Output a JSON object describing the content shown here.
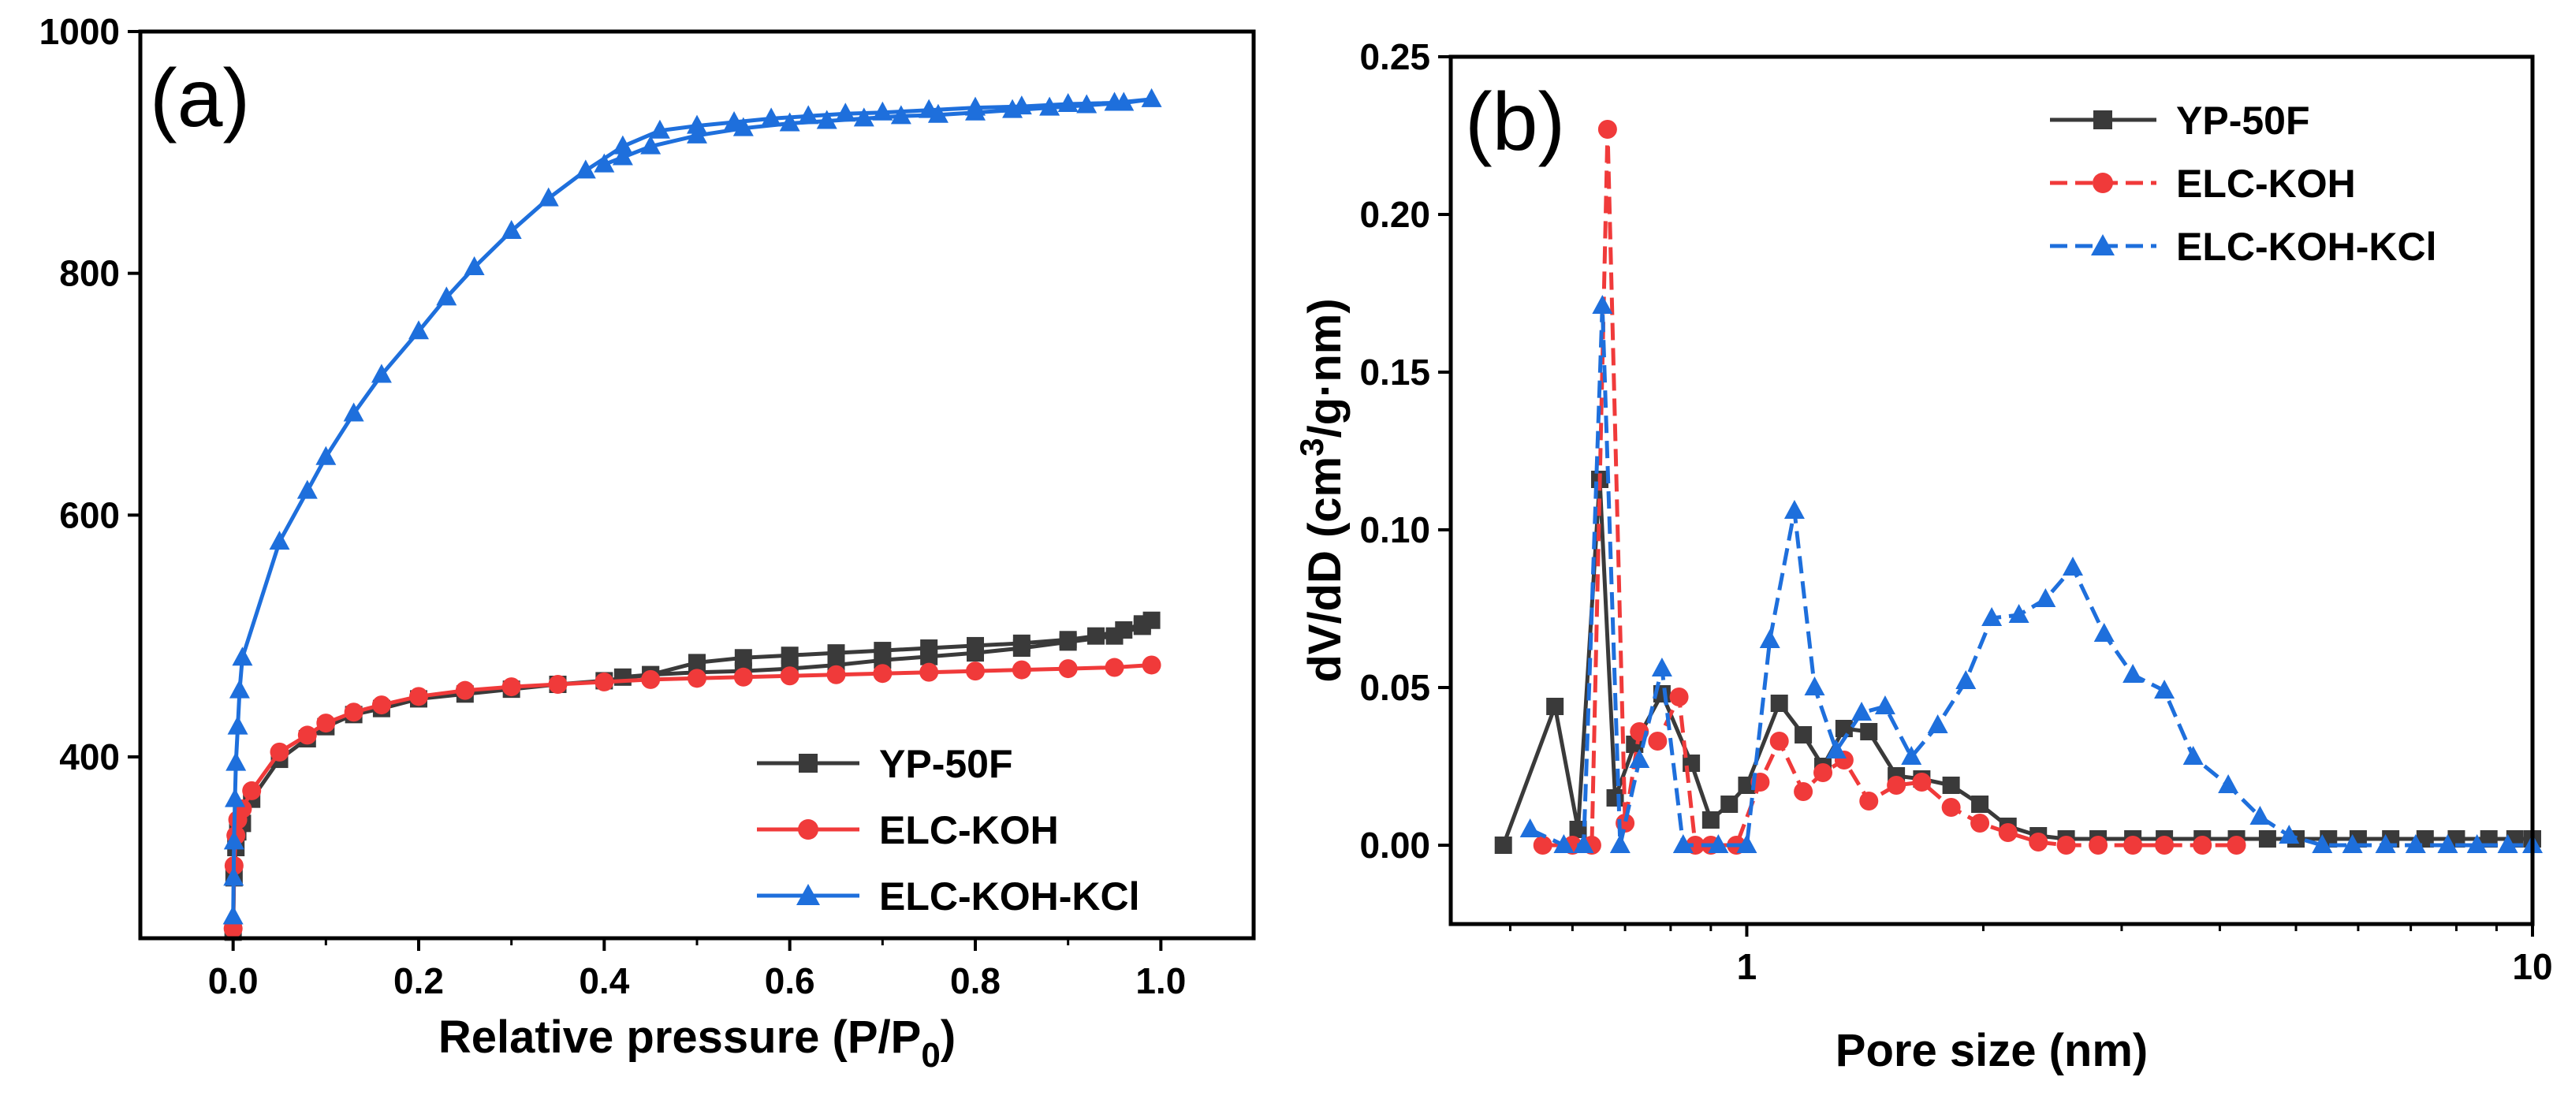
{
  "chart_data": [
    {
      "type": "line",
      "panel_label": "(a)",
      "title": "",
      "xlabel": "Relative pressure (P/P",
      "xlabel_sub": "0",
      "xlabel_close": ")",
      "ylabel": "",
      "xlim": [
        -0.1,
        1.1
      ],
      "ylim": [
        250,
        1000
      ],
      "xticks": [
        0.0,
        0.2,
        0.4,
        0.6,
        0.8,
        1.0
      ],
      "xtick_labels": [
        "0.0",
        "0.2",
        "0.4",
        "0.6",
        "0.8",
        "1.0"
      ],
      "yticks": [
        400,
        600,
        800,
        1000
      ],
      "ytick_labels": [
        "400",
        "600",
        "800",
        "1000"
      ],
      "legend_position": "bottom-right",
      "series": [
        {
          "name": "YP-50F",
          "color": "#3a3a3a",
          "marker": "square",
          "x": [
            0.0,
            0.001,
            0.003,
            0.005,
            0.01,
            0.02,
            0.05,
            0.08,
            0.1,
            0.13,
            0.16,
            0.2,
            0.25,
            0.3,
            0.35,
            0.4,
            0.45,
            0.5,
            0.55,
            0.6,
            0.65,
            0.7,
            0.75,
            0.8,
            0.85,
            0.9,
            0.93,
            0.96,
            0.98,
            0.99,
            0.98,
            0.95,
            0.9,
            0.85,
            0.8,
            0.75,
            0.7,
            0.65,
            0.6,
            0.55,
            0.5,
            0.45,
            0.42
          ],
          "y": [
            255,
            300,
            325,
            338,
            345,
            365,
            398,
            415,
            425,
            435,
            440,
            448,
            452,
            456,
            460,
            463,
            468,
            478,
            482,
            484,
            486,
            488,
            490,
            492,
            494,
            497,
            500,
            505,
            510,
            513,
            508,
            500,
            495,
            490,
            486,
            483,
            480,
            476,
            473,
            471,
            470,
            468,
            466
          ]
        },
        {
          "name": "ELC-KOH",
          "color": "#f03a3a",
          "marker": "circle",
          "x": [
            0.0,
            0.001,
            0.003,
            0.005,
            0.01,
            0.02,
            0.05,
            0.08,
            0.1,
            0.13,
            0.16,
            0.2,
            0.25,
            0.3,
            0.35,
            0.4,
            0.45,
            0.5,
            0.55,
            0.6,
            0.65,
            0.7,
            0.75,
            0.8,
            0.85,
            0.9,
            0.95,
            0.99
          ],
          "y": [
            258,
            310,
            335,
            348,
            357,
            372,
            404,
            418,
            428,
            437,
            443,
            450,
            455,
            458,
            460,
            462,
            464,
            465,
            466,
            467,
            468,
            469,
            470,
            471,
            472,
            473,
            474,
            476
          ]
        },
        {
          "name": "ELC-KOH-KCl",
          "color": "#1e6fdc",
          "marker": "triangle",
          "x": [
            0.0,
            0.0005,
            0.001,
            0.002,
            0.003,
            0.005,
            0.007,
            0.01,
            0.05,
            0.08,
            0.1,
            0.13,
            0.16,
            0.2,
            0.23,
            0.26,
            0.3,
            0.34,
            0.38,
            0.42,
            0.46,
            0.5,
            0.54,
            0.58,
            0.62,
            0.66,
            0.7,
            0.75,
            0.8,
            0.85,
            0.9,
            0.95,
            0.99,
            0.96,
            0.92,
            0.88,
            0.84,
            0.8,
            0.76,
            0.72,
            0.68,
            0.64,
            0.6,
            0.55,
            0.5,
            0.45,
            0.42,
            0.4
          ],
          "y": [
            268,
            300,
            330,
            365,
            395,
            425,
            455,
            482,
            578,
            620,
            648,
            684,
            716,
            752,
            780,
            805,
            835,
            862,
            885,
            905,
            918,
            922,
            925,
            928,
            930,
            932,
            933,
            935,
            937,
            938,
            940,
            941,
            944,
            941,
            939,
            937,
            935,
            933,
            931,
            930,
            928,
            926,
            924,
            920,
            914,
            905,
            896,
            890
          ]
        }
      ]
    },
    {
      "type": "line",
      "panel_label": "(b)",
      "title": "",
      "xlabel": "Pore size (nm)",
      "ylabel": "dV/dD (cm",
      "ylabel_sup": "3",
      "ylabel_close": "/g·nm)",
      "xscale": "log",
      "xlim": [
        0.42,
        10
      ],
      "ylim": [
        -0.025,
        0.25
      ],
      "xticks": [
        1,
        10
      ],
      "xtick_labels": [
        "1",
        "10"
      ],
      "yticks": [
        0.0,
        0.05,
        0.1,
        0.15,
        0.2,
        0.25
      ],
      "ytick_labels": [
        "0.00",
        "0.05",
        "0.10",
        "0.15",
        "0.20",
        "0.25"
      ],
      "legend_position": "top-right",
      "series": [
        {
          "name": "YP-50F",
          "color": "#3a3a3a",
          "marker": "square",
          "x": [
            0.49,
            0.57,
            0.61,
            0.65,
            0.68,
            0.72,
            0.78,
            0.85,
            0.9,
            0.95,
            1.0,
            1.1,
            1.18,
            1.25,
            1.33,
            1.43,
            1.55,
            1.67,
            1.82,
            1.98,
            2.15,
            2.35,
            2.55,
            2.8,
            3.1,
            3.4,
            3.8,
            4.2,
            4.6,
            5.0,
            5.5,
            6.0,
            6.6,
            7.3,
            8.0,
            8.8,
            9.5,
            10.0
          ],
          "y": [
            0.0,
            0.044,
            0.005,
            0.116,
            0.015,
            0.032,
            0.048,
            0.026,
            0.008,
            0.013,
            0.019,
            0.045,
            0.035,
            0.025,
            0.037,
            0.036,
            0.022,
            0.021,
            0.019,
            0.013,
            0.006,
            0.003,
            0.002,
            0.002,
            0.002,
            0.002,
            0.002,
            0.002,
            0.002,
            0.002,
            0.002,
            0.002,
            0.002,
            0.002,
            0.002,
            0.002,
            0.002,
            0.002
          ]
        },
        {
          "name": "ELC-KOH",
          "color": "#f03a3a",
          "marker": "circle",
          "x": [
            0.55,
            0.6,
            0.635,
            0.665,
            0.7,
            0.73,
            0.77,
            0.82,
            0.86,
            0.9,
            0.97,
            1.04,
            1.1,
            1.18,
            1.25,
            1.33,
            1.43,
            1.55,
            1.67,
            1.82,
            1.98,
            2.15,
            2.35,
            2.55,
            2.8,
            3.1,
            3.4,
            3.8,
            4.2
          ],
          "y": [
            0.0,
            0.0,
            0.0,
            0.227,
            0.007,
            0.036,
            0.033,
            0.047,
            0.0,
            0.0,
            0.0,
            0.02,
            0.033,
            0.017,
            0.023,
            0.027,
            0.014,
            0.019,
            0.02,
            0.012,
            0.007,
            0.004,
            0.001,
            0.0,
            0.0,
            0.0,
            0.0,
            0.0,
            0.0
          ]
        },
        {
          "name": "ELC-KOH-KCl",
          "color": "#1e6fdc",
          "marker": "triangle",
          "x": [
            0.53,
            0.585,
            0.62,
            0.655,
            0.69,
            0.73,
            0.78,
            0.83,
            0.92,
            1.0,
            1.07,
            1.15,
            1.22,
            1.3,
            1.4,
            1.5,
            1.62,
            1.75,
            1.9,
            2.05,
            2.22,
            2.4,
            2.6,
            2.85,
            3.1,
            3.4,
            3.7,
            4.1,
            4.5,
            4.9,
            5.4,
            5.9,
            6.5,
            7.1,
            7.8,
            8.5,
            9.3,
            10.0
          ],
          "y": [
            0.005,
            0.0,
            0.0,
            0.171,
            0.0,
            0.027,
            0.056,
            0.0,
            0.0,
            0.0,
            0.065,
            0.106,
            0.05,
            0.03,
            0.042,
            0.044,
            0.028,
            0.038,
            0.052,
            0.072,
            0.073,
            0.078,
            0.088,
            0.067,
            0.054,
            0.049,
            0.028,
            0.019,
            0.009,
            0.003,
            0.0,
            0.0,
            0.0,
            0.0,
            0.0,
            0.0,
            0.0,
            0.0
          ]
        }
      ]
    }
  ]
}
